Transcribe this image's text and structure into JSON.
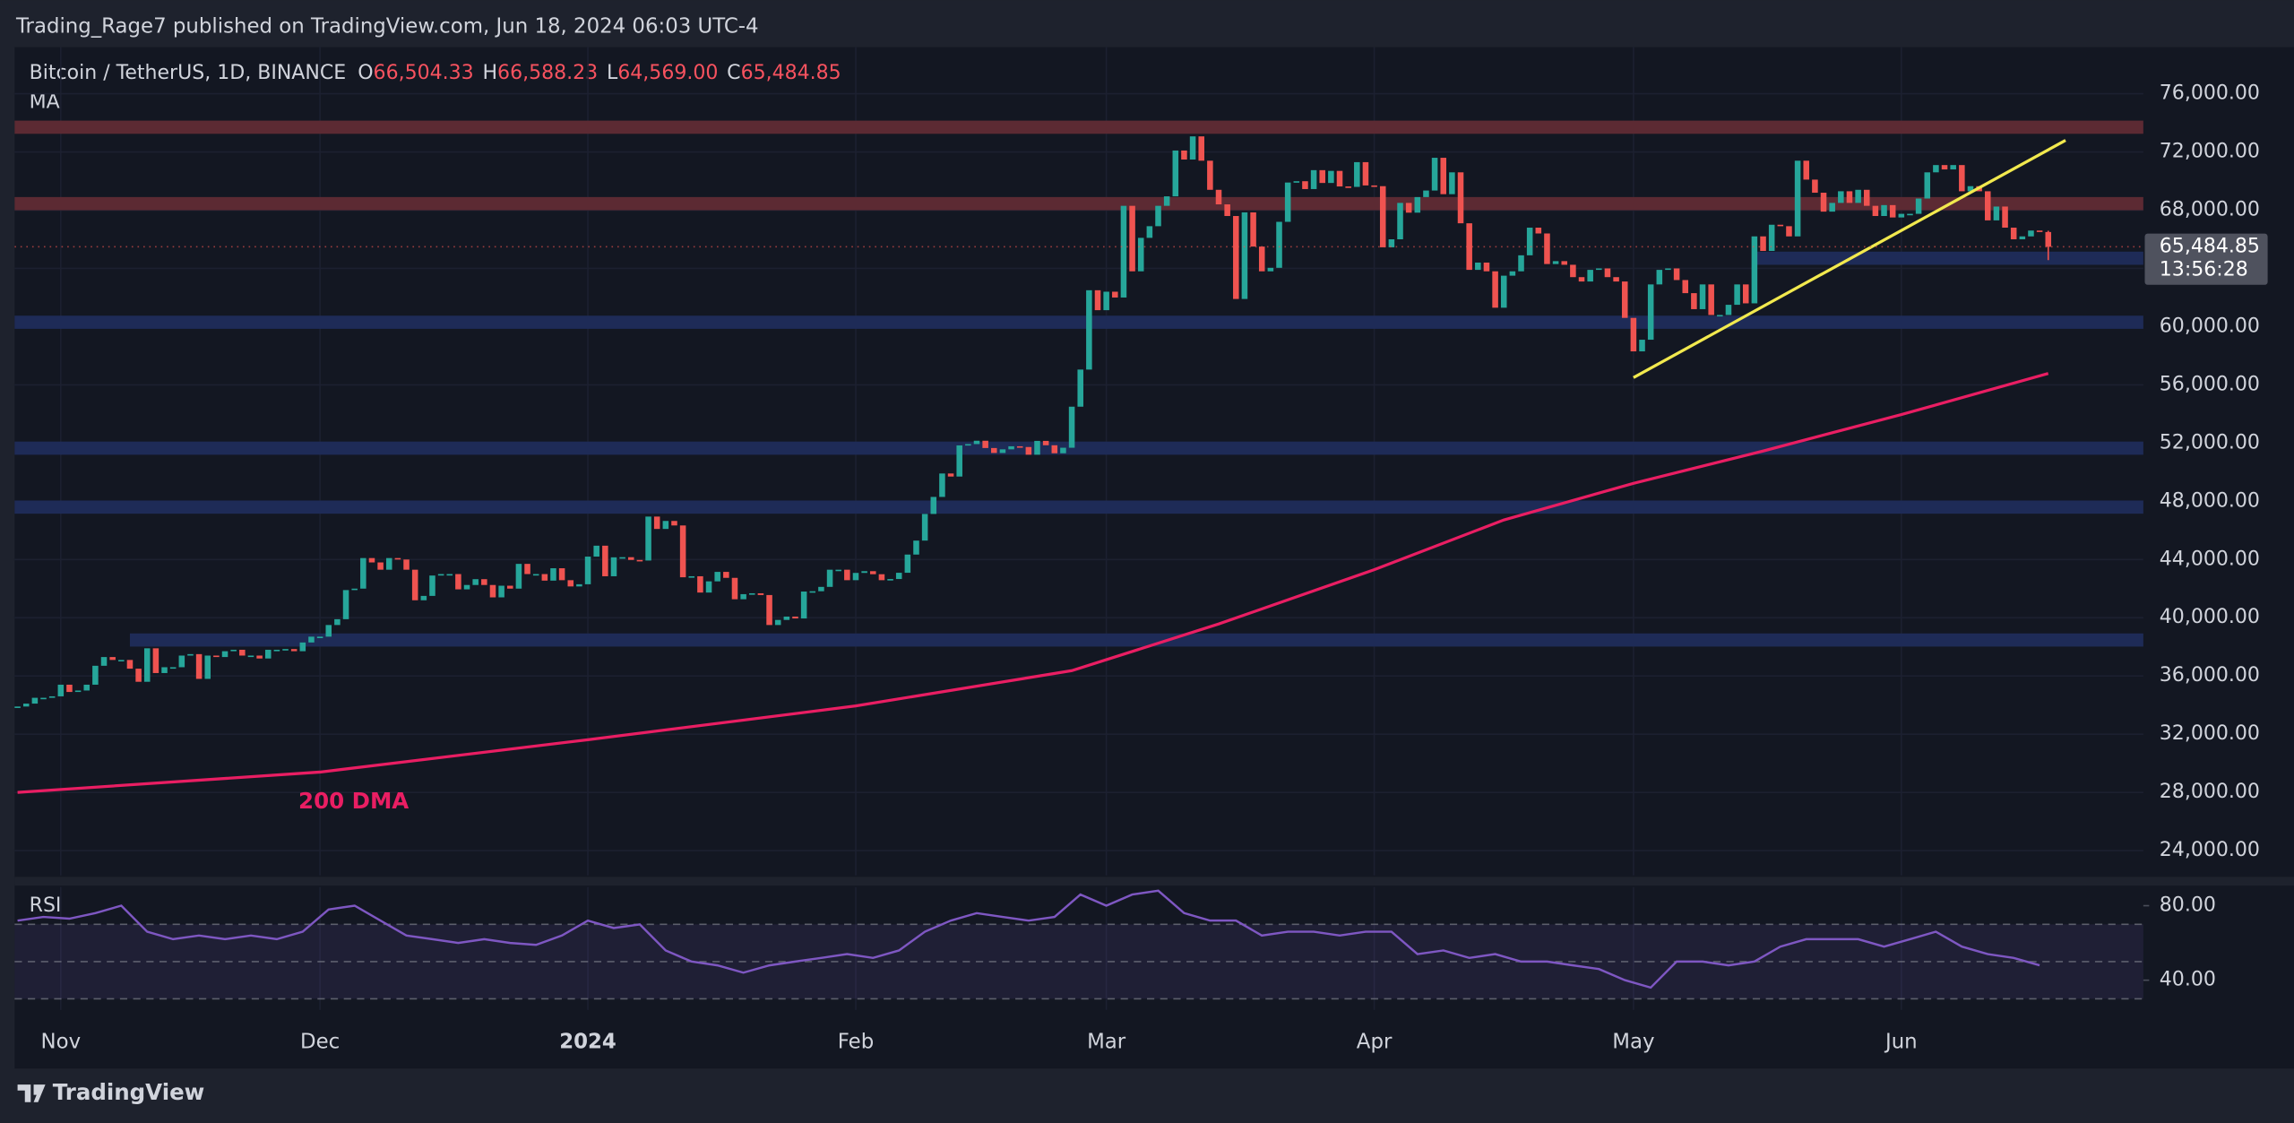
{
  "header": {
    "publisher": "Trading_Rage7 published on TradingView.com, Jun 18, 2024 06:03 UTC-4"
  },
  "chart_data": {
    "type": "candlestick",
    "symbol": "Bitcoin / TetherUS, 1D, BINANCE",
    "ohlc": [
      {
        "key": "O",
        "value": 66504.33,
        "label": "66,504.33"
      },
      {
        "key": "H",
        "value": 66588.23,
        "label": "66,588.23"
      },
      {
        "key": "L",
        "value": 64569.0,
        "label": "64,569.00"
      },
      {
        "key": "C",
        "value": 65484.85,
        "label": "65,484.85"
      }
    ],
    "indicator_label": "MA",
    "up_color": "#26a69a",
    "down_color": "#ef5350",
    "close": [
      33900,
      34100,
      34500,
      34500,
      34600,
      35400,
      34900,
      35000,
      35400,
      36700,
      37300,
      37100,
      37100,
      36500,
      35600,
      37900,
      36200,
      36600,
      36600,
      37400,
      37500,
      35800,
      37400,
      37300,
      37700,
      37800,
      37400,
      37400,
      37200,
      37800,
      37800,
      37850,
      37700,
      38300,
      38700,
      38700,
      39500,
      39900,
      41900,
      42000,
      44100,
      43800,
      43300,
      44100,
      44000,
      43300,
      41200,
      41500,
      42900,
      43000,
      43000,
      41950,
      42250,
      42650,
      42250,
      41400,
      42200,
      42000,
      43700,
      43000,
      43000,
      42550,
      43400,
      42580,
      42150,
      42300,
      44200,
      44950,
      42850,
      44150,
      44160,
      43970,
      43930,
      46950,
      46100,
      46650,
      46340,
      42780,
      42850,
      41730,
      42500,
      43150,
      42740,
      41270,
      41620,
      41680,
      41560,
      39500,
      39850,
      40080,
      39950,
      41800,
      41820,
      42120,
      43300,
      43300,
      42580,
      43080,
      43200,
      42990,
      42580,
      42660,
      43090,
      44340,
      45300,
      47130,
      48300,
      49910,
      49700,
      51840,
      51930,
      52160,
      51660,
      51320,
      51570,
      51780,
      51730,
      51200,
      52150,
      51850,
      51300,
      51680,
      54500,
      57050,
      62500,
      61130,
      62400,
      62000,
      68300,
      63800,
      66100,
      66900,
      68300,
      68950,
      72100,
      71480,
      73070,
      71400,
      69400,
      68400,
      67600,
      61900,
      67850,
      65500,
      63800,
      64040,
      67200,
      69900,
      69990,
      69450,
      70750,
      69870,
      70700,
      69630,
      69600,
      71300,
      69700,
      69650,
      65450,
      66000,
      68500,
      67830,
      68900,
      69350,
      71600,
      69100,
      70600,
      67100,
      63900,
      64400,
      63800,
      61300,
      63500,
      63800,
      64900,
      66800,
      66400,
      64300,
      64500,
      64250,
      63400,
      63100,
      63900,
      64000,
      63400,
      63100,
      60600,
      58300,
      59100,
      62900,
      63900,
      64000,
      63200,
      62300,
      61200,
      62900,
      60800,
      60800,
      61500,
      62900,
      61600,
      66200,
      65200,
      67000,
      66900,
      66200,
      71400,
      70100,
      69200,
      67900,
      68500,
      69300,
      68500,
      69400,
      68300,
      67600,
      68350,
      67500,
      67750,
      67750,
      68800,
      70600,
      71100,
      70800,
      71100,
      69300,
      69650,
      69300,
      67300,
      68250,
      66800,
      66000,
      66200,
      66600,
      66500,
      65484.85
    ],
    "xlim": [
      0,
      246
    ],
    "xticks": [
      {
        "value": 5,
        "label": "Nov"
      },
      {
        "value": 35,
        "label": "Dec"
      },
      {
        "value": 66,
        "label": "2024"
      },
      {
        "value": 97,
        "label": "Feb"
      },
      {
        "value": 126,
        "label": "Mar"
      },
      {
        "value": 157,
        "label": "Apr"
      },
      {
        "value": 187,
        "label": "May"
      },
      {
        "value": 218,
        "label": "Jun"
      }
    ],
    "ylim": [
      22300,
      79200
    ],
    "yticks": [
      {
        "value": 24000,
        "label": "24,000.00"
      },
      {
        "value": 28000,
        "label": "28,000.00"
      },
      {
        "value": 32000,
        "label": "32,000.00"
      },
      {
        "value": 36000,
        "label": "36,000.00"
      },
      {
        "value": 40000,
        "label": "40,000.00"
      },
      {
        "value": 44000,
        "label": "44,000.00"
      },
      {
        "value": 48000,
        "label": "48,000.00"
      },
      {
        "value": 52000,
        "label": "52,000.00"
      },
      {
        "value": 56000,
        "label": "56,000.00"
      },
      {
        "value": 60000,
        "label": "60,000.00"
      },
      {
        "value": 64000,
        "label": "64,000.00"
      },
      {
        "value": 68000,
        "label": "68,000.00"
      },
      {
        "value": 72000,
        "label": "72,000.00"
      },
      {
        "value": 76000,
        "label": "76,000.00"
      }
    ],
    "grid": true,
    "last_price": {
      "value": 65484.85,
      "label": "65,484.85"
    },
    "countdown": "13:56:28",
    "ma": {
      "name": "200 DMA",
      "color": "#e91e63",
      "x": [
        0,
        35,
        66,
        97,
        122,
        139,
        157,
        172,
        187,
        202,
        218,
        235
      ],
      "values": [
        28000,
        29400,
        31620,
        33940,
        36360,
        39570,
        43300,
        46720,
        49230,
        51450,
        53960,
        56780
      ]
    },
    "zones": [
      {
        "value": 73700,
        "color": "#5c2a33"
      },
      {
        "value": 68450,
        "color": "#5c2a33"
      },
      {
        "value": 64700,
        "color": "#1e2b57",
        "from": 201
      },
      {
        "value": 60300,
        "color": "#1e2b57"
      },
      {
        "value": 51650,
        "color": "#1e2b57"
      },
      {
        "value": 47600,
        "color": "#1e2b57"
      },
      {
        "value": 38470,
        "color": "#1e2b57",
        "from": 13
      }
    ],
    "trendline": {
      "color": "#f2e94e",
      "x": [
        187,
        237
      ],
      "values": [
        56500,
        72800
      ]
    },
    "rsi": {
      "name": "RSI",
      "color": "#7e57c2",
      "x": [
        0,
        3,
        6,
        9,
        12,
        15,
        18,
        21,
        24,
        27,
        30,
        33,
        36,
        39,
        42,
        45,
        48,
        51,
        54,
        57,
        60,
        63,
        66,
        69,
        72,
        75,
        78,
        81,
        84,
        87,
        90,
        93,
        96,
        99,
        102,
        105,
        108,
        111,
        114,
        117,
        120,
        123,
        126,
        129,
        132,
        135,
        138,
        141,
        144,
        147,
        150,
        153,
        156,
        159,
        162,
        165,
        168,
        171,
        174,
        177,
        180,
        183,
        186,
        189,
        192,
        195,
        198,
        201,
        204,
        207,
        210,
        213,
        216,
        219,
        222,
        225,
        228,
        231,
        234
      ],
      "values": [
        72,
        74,
        73,
        76,
        80,
        66,
        62,
        64,
        62,
        64,
        62,
        66,
        78,
        80,
        72,
        64,
        62,
        60,
        62,
        60,
        59,
        64,
        72,
        68,
        70,
        56,
        50,
        48,
        44,
        48,
        50,
        52,
        54,
        52,
        56,
        66,
        72,
        76,
        74,
        72,
        74,
        86,
        80,
        86,
        88,
        76,
        72,
        72,
        64,
        66,
        66,
        64,
        66,
        66,
        54,
        56,
        52,
        54,
        50,
        50,
        48,
        46,
        40,
        36,
        50,
        50,
        48,
        50,
        58,
        62,
        62,
        62,
        58,
        62,
        66,
        58,
        54,
        52,
        48
      ],
      "ylim": [
        24,
        90
      ],
      "yticks": [
        {
          "value": 40,
          "label": "40.00"
        },
        {
          "value": 80,
          "label": "80.00"
        }
      ],
      "levels": [
        70,
        50,
        30
      ]
    }
  },
  "footer": {
    "brand": "TradingView"
  }
}
